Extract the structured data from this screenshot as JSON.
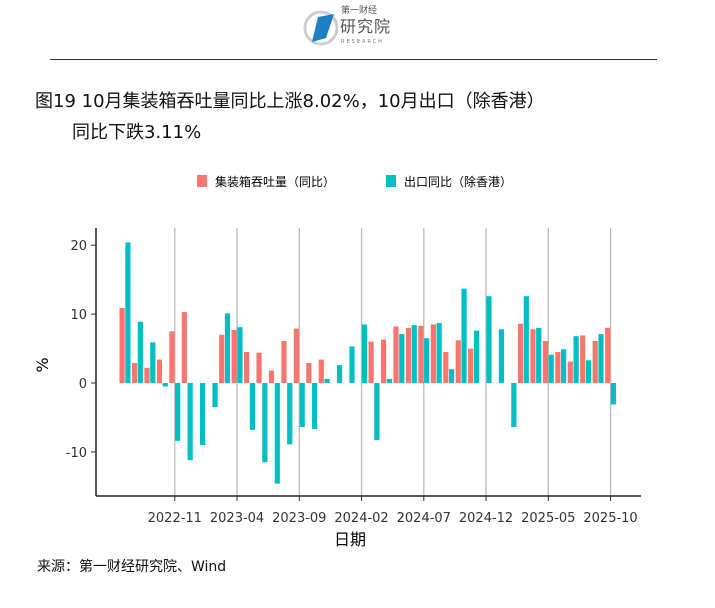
{
  "logo": {
    "line1": "第一财经",
    "line2": "研究院",
    "line3": "RESEARCH"
  },
  "title": {
    "line1": "图19 10月集装箱吞吐量同比上涨8.02%，10月出口（除香港）",
    "line2": "同比下跌3.11%"
  },
  "source": "来源：第一财经研究院、Wind",
  "chart_data": {
    "type": "bar",
    "xlabel": "日期",
    "ylabel": "%",
    "ylim": [
      -16.4,
      22.5
    ],
    "yticks": [
      -10,
      0,
      10,
      20
    ],
    "xtick_labels": [
      "2022-11",
      "2023-04",
      "2023-09",
      "2024-02",
      "2024-07",
      "2024-12",
      "2025-05",
      "2025-10"
    ],
    "grid": "vertical at x ticks",
    "legend_position": "top",
    "categories": [
      "2022-07",
      "2022-08",
      "2022-09",
      "2022-10",
      "2022-11",
      "2022-12",
      "2023-01",
      "2023-02",
      "2023-03",
      "2023-04",
      "2023-05",
      "2023-06",
      "2023-07",
      "2023-08",
      "2023-09",
      "2023-10",
      "2023-11",
      "2023-12",
      "2024-01",
      "2024-02",
      "2024-03",
      "2024-04",
      "2024-05",
      "2024-06",
      "2024-07",
      "2024-08",
      "2024-09",
      "2024-10",
      "2024-11",
      "2024-12",
      "2025-01",
      "2025-02",
      "2025-03",
      "2025-04",
      "2025-05",
      "2025-06",
      "2025-07",
      "2025-08",
      "2025-09",
      "2025-10"
    ],
    "series": [
      {
        "name": "集装箱吞吐量（同比）",
        "color": "#F8766D",
        "values": [
          10.9,
          2.9,
          2.2,
          3.4,
          7.5,
          10.3,
          null,
          null,
          7.0,
          7.7,
          4.5,
          4.4,
          1.8,
          6.1,
          7.9,
          2.9,
          3.4,
          null,
          null,
          null,
          6.0,
          6.3,
          8.2,
          8.0,
          8.3,
          8.5,
          4.5,
          6.2,
          5.0,
          null,
          null,
          null,
          8.6,
          7.8,
          6.1,
          4.5,
          3.1,
          6.9,
          6.1,
          8.02
        ]
      },
      {
        "name": "出口同比（除香港）",
        "color": "#00BFC4",
        "values": [
          20.4,
          8.9,
          5.9,
          -0.5,
          -8.4,
          -11.2,
          -9.0,
          -3.5,
          10.1,
          8.1,
          -6.8,
          -11.5,
          -14.6,
          -8.9,
          -6.4,
          -6.7,
          0.6,
          2.6,
          5.3,
          8.5,
          -8.3,
          0.6,
          7.1,
          8.4,
          6.5,
          8.7,
          2.0,
          13.7,
          7.6,
          12.6,
          7.8,
          -6.4,
          12.6,
          8.0,
          4.1,
          4.9,
          6.8,
          3.3,
          7.1,
          -3.11
        ]
      }
    ]
  }
}
